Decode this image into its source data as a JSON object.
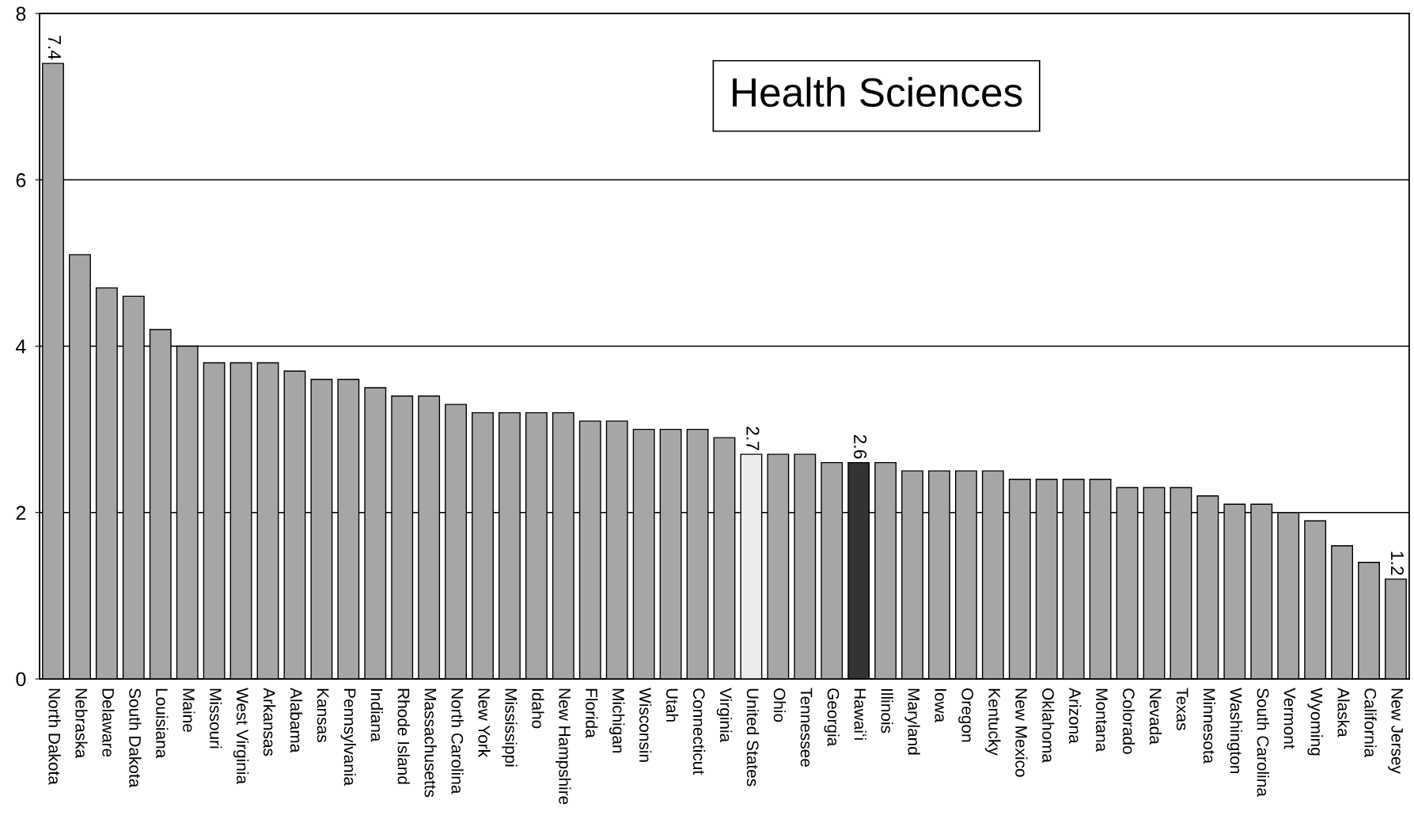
{
  "chart_data": {
    "type": "bar",
    "title": "Health Sciences",
    "categories": [
      "North Dakota",
      "Nebraska",
      "Delaware",
      "South Dakota",
      "Louisiana",
      "Maine",
      "Missouri",
      "West Virginia",
      "Arkansas",
      "Alabama",
      "Kansas",
      "Pennsylvania",
      "Indiana",
      "Rhode Island",
      "Massachusetts",
      "North Carolina",
      "New York",
      "Mississippi",
      "Idaho",
      "New Hampshire",
      "Florida",
      "Michigan",
      "Wisconsin",
      "Utah",
      "Connecticut",
      "Virginia",
      "United States",
      "Ohio",
      "Tennessee",
      "Georgia",
      "Hawaiʻi",
      "Illinois",
      "Maryland",
      "Iowa",
      "Oregon",
      "Kentucky",
      "New Mexico",
      "Oklahoma",
      "Arizona",
      "Montana",
      "Colorado",
      "Nevada",
      "Texas",
      "Minnesota",
      "Washington",
      "South Carolina",
      "Vermont",
      "Wyoming",
      "Alaska",
      "California",
      "New Jersey"
    ],
    "values": [
      7.4,
      5.1,
      4.7,
      4.6,
      4.2,
      4.0,
      3.8,
      3.8,
      3.8,
      3.7,
      3.6,
      3.6,
      3.5,
      3.4,
      3.4,
      3.3,
      3.2,
      3.2,
      3.2,
      3.2,
      3.1,
      3.1,
      3.0,
      3.0,
      3.0,
      2.9,
      2.7,
      2.7,
      2.7,
      2.6,
      2.6,
      2.6,
      2.5,
      2.5,
      2.5,
      2.5,
      2.4,
      2.4,
      2.4,
      2.4,
      2.3,
      2.3,
      2.3,
      2.2,
      2.1,
      2.1,
      2.0,
      1.9,
      1.6,
      1.4,
      1.2
    ],
    "colors": [
      "#a6a6a6",
      "#a6a6a6",
      "#a6a6a6",
      "#a6a6a6",
      "#a6a6a6",
      "#a6a6a6",
      "#a6a6a6",
      "#a6a6a6",
      "#a6a6a6",
      "#a6a6a6",
      "#a6a6a6",
      "#a6a6a6",
      "#a6a6a6",
      "#a6a6a6",
      "#a6a6a6",
      "#a6a6a6",
      "#a6a6a6",
      "#a6a6a6",
      "#a6a6a6",
      "#a6a6a6",
      "#a6a6a6",
      "#a6a6a6",
      "#a6a6a6",
      "#a6a6a6",
      "#a6a6a6",
      "#a6a6a6",
      "#ececec",
      "#a6a6a6",
      "#a6a6a6",
      "#a6a6a6",
      "#333333",
      "#a6a6a6",
      "#a6a6a6",
      "#a6a6a6",
      "#a6a6a6",
      "#a6a6a6",
      "#a6a6a6",
      "#a6a6a6",
      "#a6a6a6",
      "#a6a6a6",
      "#a6a6a6",
      "#a6a6a6",
      "#a6a6a6",
      "#a6a6a6",
      "#a6a6a6",
      "#a6a6a6",
      "#a6a6a6",
      "#a6a6a6",
      "#a6a6a6",
      "#a6a6a6",
      "#a6a6a6"
    ],
    "value_labels": [
      "7.4",
      null,
      null,
      null,
      null,
      null,
      null,
      null,
      null,
      null,
      null,
      null,
      null,
      null,
      null,
      null,
      null,
      null,
      null,
      null,
      null,
      null,
      null,
      null,
      null,
      null,
      "2.7",
      null,
      null,
      null,
      "2.6",
      null,
      null,
      null,
      null,
      null,
      null,
      null,
      null,
      null,
      null,
      null,
      null,
      null,
      null,
      null,
      null,
      null,
      null,
      null,
      "1.2"
    ],
    "ylim": [
      0,
      8
    ],
    "yticks": [
      0,
      2,
      4,
      6,
      8
    ],
    "grid": "y"
  }
}
